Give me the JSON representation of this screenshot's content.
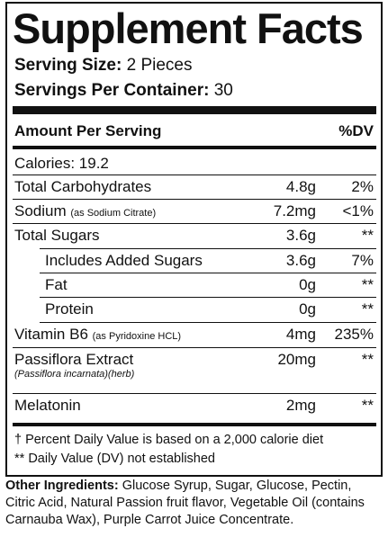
{
  "header": {
    "title": "Supplement Facts",
    "serving_size": {
      "label": "Serving Size:",
      "value": "2 Pieces"
    },
    "servings_per_container": {
      "label": "Servings Per Container:",
      "value": "30"
    }
  },
  "table": {
    "columns": [
      "Amount Per Serving",
      "%DV"
    ],
    "calories": "Calories: 19.2",
    "rows": [
      {
        "name": "Total Carbohydrates",
        "amount": "4.8g",
        "dv": "2%"
      },
      {
        "name": "Sodium",
        "note": "(as Sodium Citrate)",
        "amount": "7.2mg",
        "dv": "<1%"
      },
      {
        "name": "Total Sugars",
        "amount": "3.6g",
        "dv": "**"
      },
      {
        "name": "Includes Added Sugars",
        "amount": "3.6g",
        "dv": "7%"
      },
      {
        "name": "Fat",
        "amount": "0g",
        "dv": "**"
      },
      {
        "name": "Protein",
        "amount": "0g",
        "dv": "**"
      },
      {
        "name": "Vitamin B6",
        "note": "(as Pyridoxine HCL)",
        "amount": "4mg",
        "dv": "235%"
      },
      {
        "name": "Passiflora Extract",
        "subnote": "(Passiflora incarnata)(herb)",
        "amount": "20mg",
        "dv": "**"
      },
      {
        "name": "Melatonin",
        "amount": "2mg",
        "dv": "**"
      }
    ],
    "footnotes": [
      "† Percent Daily Value is based on a 2,000 calorie diet",
      "** Daily Value (DV) not established"
    ]
  },
  "other_ingredients": {
    "label": "Other Ingredients:",
    "text": "Glucose Syrup, Sugar, Glucose, Pectin, Citric Acid, Natural Passion fruit flavor, Vegetable Oil (contains Carnauba Wax), Purple Carrot Juice Concentrate."
  }
}
